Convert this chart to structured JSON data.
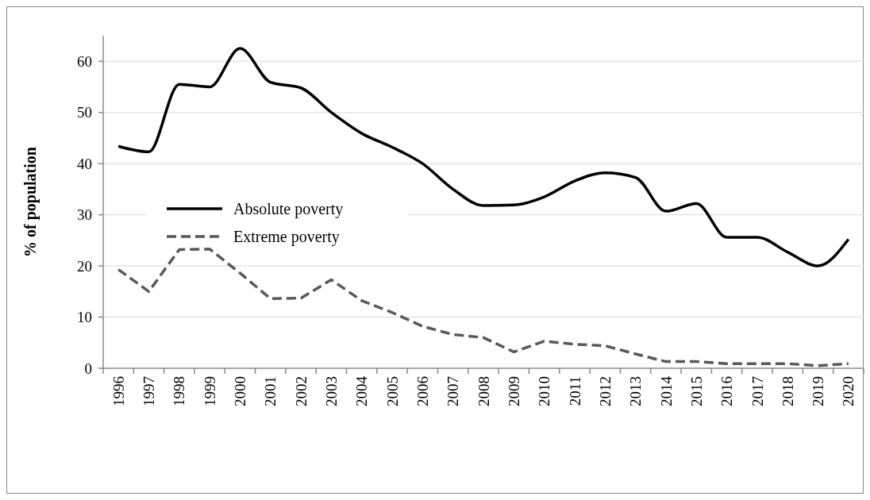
{
  "chart_data": {
    "type": "line",
    "ylabel": "% of population",
    "categories": [
      "1996",
      "1997",
      "1998",
      "1999",
      "2000",
      "2001",
      "2002",
      "2003",
      "2004",
      "2005",
      "2006",
      "2007",
      "2008",
      "2009",
      "2010",
      "2011",
      "2012",
      "2013",
      "2014",
      "2015",
      "2016",
      "2017",
      "2018",
      "2019",
      "2020"
    ],
    "series": [
      {
        "name": "Absolute poverty",
        "color": "#000000",
        "line_style": "solid",
        "values": [
          43.4,
          42.3,
          55.5,
          55,
          62.5,
          55.9,
          54.8,
          50,
          45.9,
          43.2,
          40,
          35,
          31.8,
          31.9,
          33.5,
          36.6,
          38.2,
          37.3,
          30.7,
          32.2,
          25.6,
          25.6,
          22.7,
          20,
          25.2
        ]
      },
      {
        "name": "Extreme poverty",
        "color": "#595959",
        "line_style": "dashed",
        "values": [
          19.3,
          15,
          23.2,
          23.3,
          18.6,
          13.6,
          13.7,
          17.3,
          13.2,
          10.9,
          8.2,
          6.6,
          6,
          3.2,
          5.3,
          4.7,
          4.4,
          2.8,
          1.3,
          1.3,
          0.9,
          0.9,
          0.9,
          0.5,
          0.9
        ]
      }
    ],
    "ylim": [
      0,
      65
    ],
    "yticks": [
      0,
      10,
      20,
      30,
      40,
      50,
      60
    ],
    "grid": "y",
    "legend": "left",
    "marker": "none"
  }
}
